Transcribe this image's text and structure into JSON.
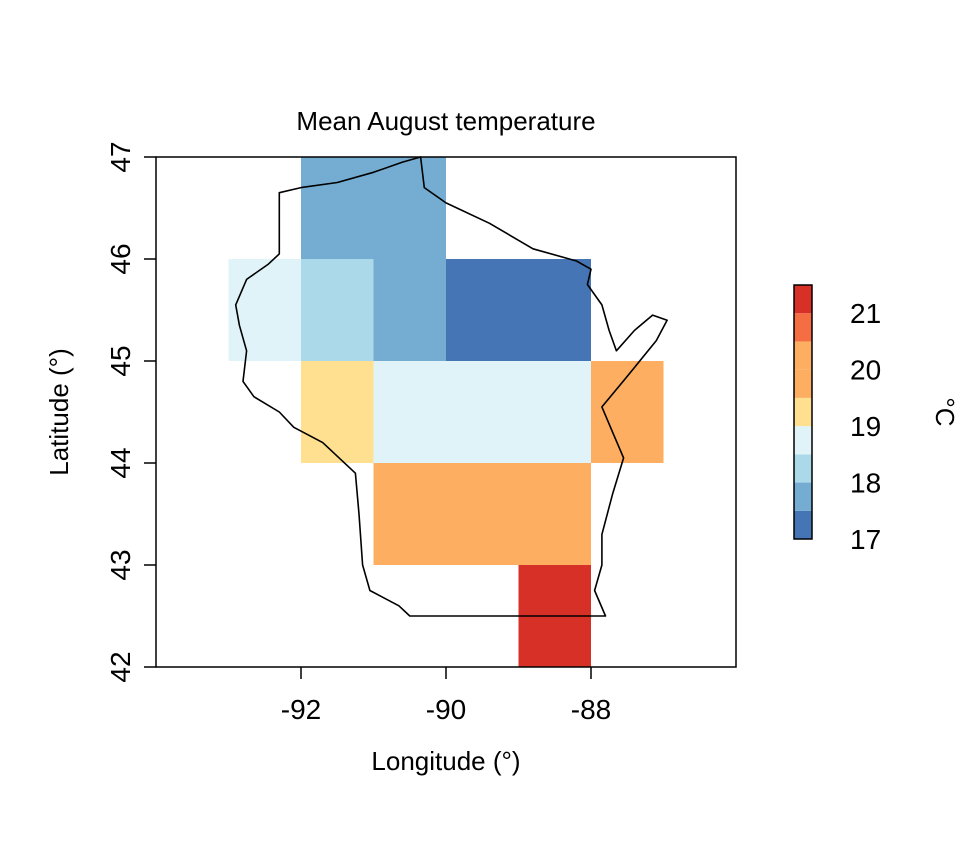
{
  "chart_data": {
    "type": "heatmap",
    "title": "Mean August temperature",
    "xlabel": "Longitude (°)",
    "ylabel": "Latitude (°)",
    "xlim": [
      -94,
      -86
    ],
    "ylim": [
      42,
      47
    ],
    "x_ticks": [
      -92,
      -90,
      -88
    ],
    "y_ticks": [
      42,
      43,
      44,
      45,
      46,
      47
    ],
    "x_tick_labels": [
      "-92",
      "-90",
      "-88"
    ],
    "y_tick_labels": [
      "42",
      "43",
      "44",
      "45",
      "46",
      "47"
    ],
    "grid": false,
    "cells": [
      {
        "lon": [
          -92,
          -90
        ],
        "lat": [
          46,
          47
        ],
        "value": 17.75
      },
      {
        "lon": [
          -93,
          -92
        ],
        "lat": [
          45,
          46
        ],
        "value": 18.75
      },
      {
        "lon": [
          -92,
          -91
        ],
        "lat": [
          45,
          46
        ],
        "value": 18.25
      },
      {
        "lon": [
          -91,
          -90
        ],
        "lat": [
          45,
          46
        ],
        "value": 17.75
      },
      {
        "lon": [
          -90,
          -88
        ],
        "lat": [
          45,
          46
        ],
        "value": 17.25
      },
      {
        "lon": [
          -92,
          -91
        ],
        "lat": [
          44,
          45
        ],
        "value": 19.25
      },
      {
        "lon": [
          -91,
          -88
        ],
        "lat": [
          44,
          45
        ],
        "value": 18.75
      },
      {
        "lon": [
          -88,
          -87
        ],
        "lat": [
          44,
          45
        ],
        "value": 19.75
      },
      {
        "lon": [
          -91,
          -88
        ],
        "lat": [
          43,
          44
        ],
        "value": 19.75
      },
      {
        "lon": [
          -89,
          -88
        ],
        "lat": [
          42,
          43
        ],
        "value": 21.25
      }
    ],
    "colorbar": {
      "label": "°C",
      "min": 17,
      "max": 21.5,
      "breaks": [
        17,
        17.5,
        18,
        18.5,
        19,
        19.5,
        20,
        20.5,
        21,
        21.5
      ],
      "colors": [
        "#4575b4",
        "#74add1",
        "#abd9e9",
        "#e0f3f8",
        "#fee090",
        "#fdae61",
        "#fdae61",
        "#f46d43",
        "#d73027"
      ],
      "tick_values": [
        17,
        18,
        19,
        20,
        21
      ],
      "tick_labels": [
        "17",
        "18",
        "19",
        "20",
        "21"
      ]
    },
    "outline": {
      "name": "Wisconsin",
      "lonlat": [
        [
          -92.0,
          46.7
        ],
        [
          -91.5,
          46.75
        ],
        [
          -91.0,
          46.85
        ],
        [
          -90.6,
          46.95
        ],
        [
          -90.35,
          47.0
        ],
        [
          -90.3,
          46.7
        ],
        [
          -90.0,
          46.55
        ],
        [
          -89.4,
          46.35
        ],
        [
          -88.8,
          46.1
        ],
        [
          -88.2,
          45.98
        ],
        [
          -88.0,
          45.9
        ],
        [
          -88.05,
          45.75
        ],
        [
          -87.85,
          45.55
        ],
        [
          -87.75,
          45.3
        ],
        [
          -87.65,
          45.1
        ],
        [
          -87.4,
          45.3
        ],
        [
          -87.15,
          45.45
        ],
        [
          -86.95,
          45.4
        ],
        [
          -87.1,
          45.2
        ],
        [
          -87.5,
          44.85
        ],
        [
          -87.85,
          44.55
        ],
        [
          -87.7,
          44.3
        ],
        [
          -87.55,
          44.05
        ],
        [
          -87.7,
          43.7
        ],
        [
          -87.85,
          43.3
        ],
        [
          -87.85,
          43.0
        ],
        [
          -87.95,
          42.75
        ],
        [
          -87.8,
          42.5
        ],
        [
          -88.5,
          42.5
        ],
        [
          -89.5,
          42.5
        ],
        [
          -90.5,
          42.5
        ],
        [
          -90.65,
          42.6
        ],
        [
          -91.05,
          42.75
        ],
        [
          -91.15,
          43.0
        ],
        [
          -91.2,
          43.5
        ],
        [
          -91.25,
          43.9
        ],
        [
          -91.7,
          44.2
        ],
        [
          -92.1,
          44.35
        ],
        [
          -92.3,
          44.5
        ],
        [
          -92.65,
          44.65
        ],
        [
          -92.8,
          44.8
        ],
        [
          -92.75,
          45.1
        ],
        [
          -92.85,
          45.35
        ],
        [
          -92.9,
          45.55
        ],
        [
          -92.75,
          45.8
        ],
        [
          -92.45,
          45.95
        ],
        [
          -92.3,
          46.05
        ],
        [
          -92.3,
          46.65
        ],
        [
          -92.0,
          46.7
        ]
      ]
    }
  }
}
